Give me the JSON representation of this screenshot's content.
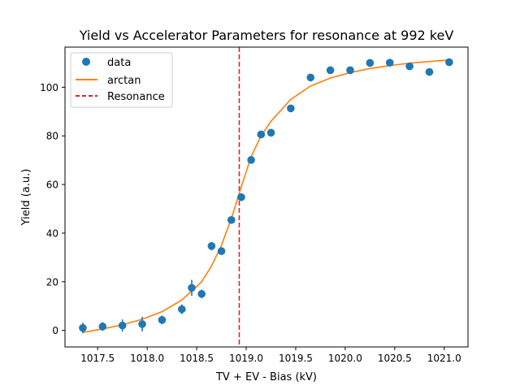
{
  "chart_data": {
    "type": "scatter",
    "title": "Yield vs Accelerator Parameters for resonance at 992 keV",
    "xlabel": "TV + EV - Bias (kV)",
    "ylabel": "Yield (a.u.)",
    "xlim": [
      1017.17,
      1021.24
    ],
    "ylim": [
      -6.8,
      116.5
    ],
    "xticks": [
      1017.5,
      1018.0,
      1018.5,
      1019.0,
      1019.5,
      1020.0,
      1020.5,
      1021.0
    ],
    "xtick_labels": [
      "1017.5",
      "1018.0",
      "1018.5",
      "1019.0",
      "1019.5",
      "1020.0",
      "1020.5",
      "1021.0"
    ],
    "yticks": [
      0,
      20,
      40,
      60,
      80,
      100
    ],
    "ytick_labels": [
      "0",
      "20",
      "40",
      "60",
      "80",
      "100"
    ],
    "grid": false,
    "legend_position": "upper-left",
    "resonance": {
      "name": "Resonance",
      "x": 1018.93,
      "color": "#d62728",
      "style": "dashed"
    },
    "series": [
      {
        "name": "data",
        "kind": "points-with-errorbars",
        "color": "#1f77b4",
        "x": [
          1017.35,
          1017.55,
          1017.75,
          1017.95,
          1018.15,
          1018.35,
          1018.45,
          1018.55,
          1018.65,
          1018.75,
          1018.85,
          1018.95,
          1019.05,
          1019.15,
          1019.25,
          1019.45,
          1019.65,
          1019.85,
          1020.05,
          1020.25,
          1020.45,
          1020.65,
          1020.85,
          1021.05
        ],
        "y": [
          1.0,
          1.6,
          2.0,
          2.6,
          4.3,
          8.7,
          17.5,
          15.0,
          34.7,
          32.6,
          45.4,
          54.8,
          70.1,
          80.6,
          81.3,
          91.3,
          104.0,
          107.0,
          107.0,
          110.0,
          110.1,
          108.6,
          106.3,
          110.3
        ],
        "yerr": [
          2.2,
          1.8,
          2.5,
          3.0,
          1.8,
          2.0,
          3.3,
          1.8,
          1.7,
          1.5,
          1.4,
          1.5,
          1.3,
          1.2,
          1.5,
          1.1,
          1.0,
          1.0,
          1.0,
          1.0,
          1.0,
          1.0,
          1.0,
          1.0
        ]
      },
      {
        "name": "arctan",
        "kind": "line",
        "color": "#ff7f0e",
        "x": [
          1017.35,
          1017.55,
          1017.75,
          1017.95,
          1018.15,
          1018.35,
          1018.55,
          1018.65,
          1018.75,
          1018.85,
          1018.95,
          1019.05,
          1019.15,
          1019.25,
          1019.45,
          1019.65,
          1019.85,
          1020.05,
          1020.25,
          1020.45,
          1020.65,
          1020.85,
          1021.05
        ],
        "y": [
          -0.8,
          0.6,
          2.3,
          4.6,
          7.7,
          12.5,
          20.0,
          26.5,
          35.0,
          46.0,
          59.0,
          71.5,
          80.0,
          86.0,
          95.0,
          100.5,
          103.8,
          106.0,
          107.7,
          108.9,
          109.9,
          110.6,
          111.2
        ]
      }
    ]
  }
}
